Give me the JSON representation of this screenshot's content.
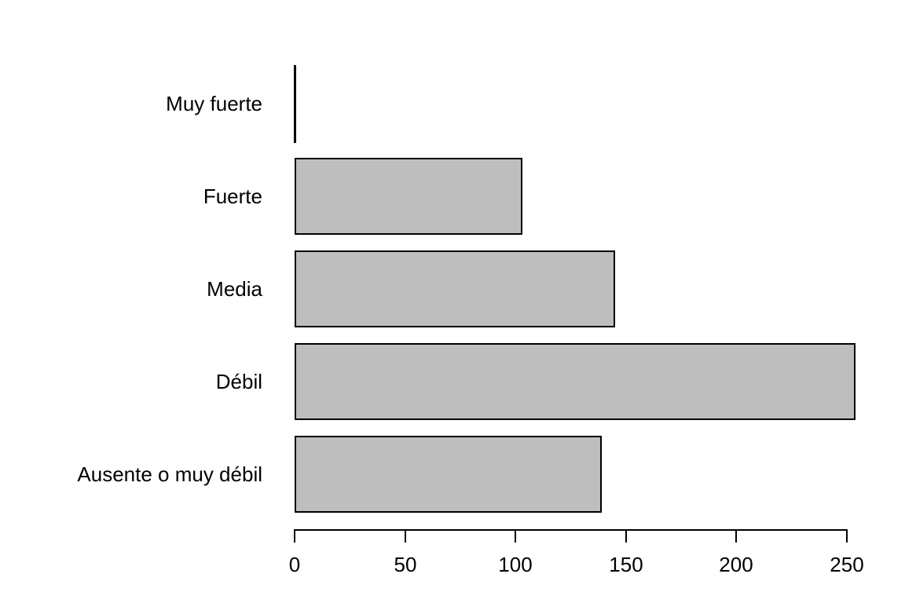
{
  "chart_data": {
    "type": "bar",
    "orientation": "horizontal",
    "title": "",
    "xlabel": "",
    "ylabel": "",
    "categories": [
      "Muy fuerte",
      "Fuerte",
      "Media",
      "Débil",
      "Ausente o muy débil"
    ],
    "values": [
      0,
      103,
      145,
      254,
      139
    ],
    "xlim": [
      0,
      250
    ],
    "xticks": [
      0,
      50,
      100,
      150,
      200,
      250
    ],
    "grid": false,
    "legend": "none",
    "bar_fill_color": "#BEBEBE",
    "bar_border_color": "#000000",
    "axis_color": "#000000",
    "text_color": "#000000",
    "background_color": "#FFFFFF"
  }
}
